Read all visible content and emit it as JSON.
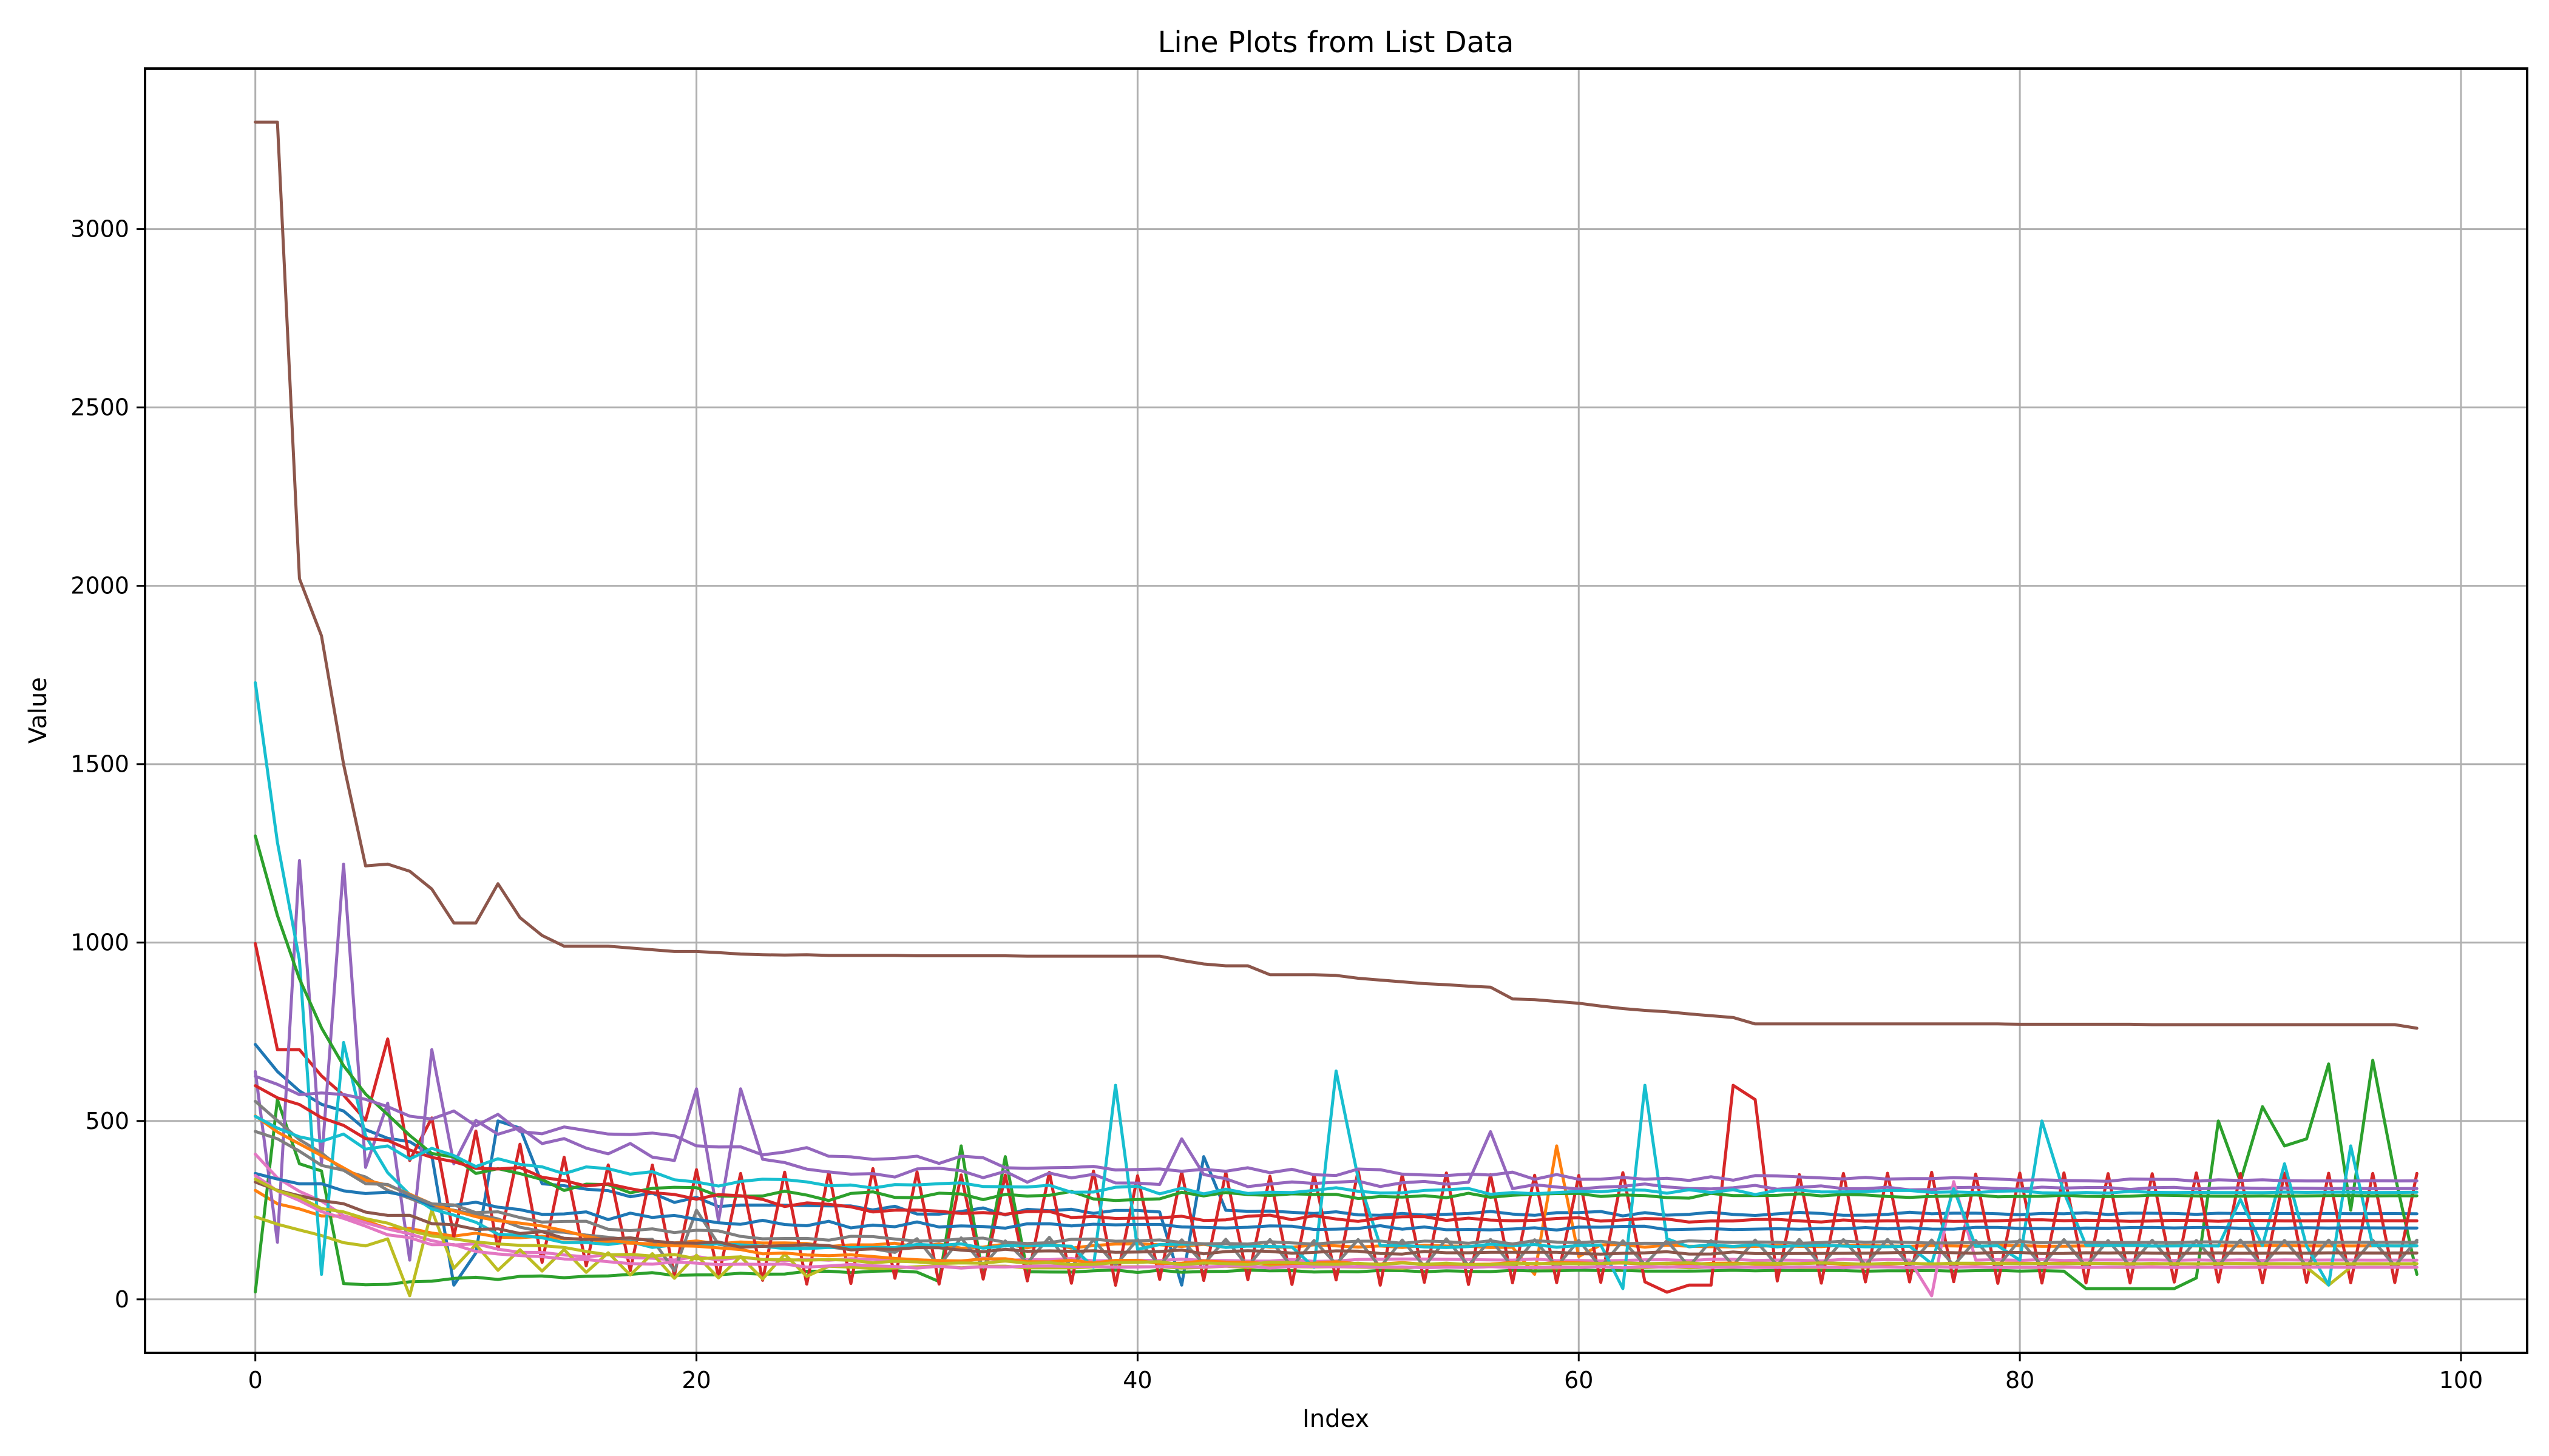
{
  "chart_data": {
    "type": "line",
    "title": "Line Plots from List Data",
    "xlabel": "Index",
    "ylabel": "Value",
    "xlim": [
      -5,
      103
    ],
    "ylim": [
      -150,
      3450
    ],
    "xticks": [
      0,
      20,
      40,
      60,
      80,
      100
    ],
    "yticks": [
      0,
      500,
      1000,
      1500,
      2000,
      2500,
      3000
    ],
    "grid": true,
    "legend": "none",
    "series_shapes": [
      {
        "color": "#1f77b4",
        "start": 700,
        "end": 240,
        "decay": 8,
        "osc": 0,
        "oscstart": 0,
        "oscend": 0,
        "seed": 11,
        "spikes": [
          [
            9,
            40
          ],
          [
            10,
            130
          ],
          [
            11,
            500
          ],
          [
            12,
            480
          ],
          [
            42,
            40
          ],
          [
            43,
            400
          ]
        ]
      },
      {
        "color": "#ff7f0e",
        "start": 300,
        "end": 150,
        "decay": 6,
        "osc": 0,
        "oscstart": 0,
        "oscend": 0,
        "seed": 12,
        "spikes": [
          [
            58,
            70
          ],
          [
            59,
            430
          ],
          [
            60,
            120
          ]
        ]
      },
      {
        "color": "#2ca02c",
        "start": 20,
        "end": 80,
        "decay": 10,
        "osc": 0,
        "oscstart": 0,
        "oscend": 0,
        "seed": 13,
        "spikes": [
          [
            1,
            560
          ],
          [
            2,
            380
          ],
          [
            3,
            360
          ],
          [
            31,
            50
          ],
          [
            32,
            430
          ],
          [
            33,
            60
          ],
          [
            34,
            400
          ],
          [
            83,
            30
          ],
          [
            84,
            30
          ],
          [
            85,
            30
          ],
          [
            86,
            30
          ],
          [
            87,
            30
          ],
          [
            88,
            60
          ],
          [
            89,
            500
          ],
          [
            90,
            330
          ],
          [
            91,
            540
          ],
          [
            92,
            430
          ],
          [
            93,
            450
          ],
          [
            94,
            660
          ],
          [
            95,
            250
          ],
          [
            96,
            670
          ],
          [
            97,
            350
          ],
          [
            98,
            70
          ]
        ]
      },
      {
        "color": "#d62728",
        "start": 1000,
        "end": 200,
        "decay": 5,
        "osc": 170,
        "oscstart": 8,
        "oscend": 99,
        "seed": 14,
        "spikes": [
          [
            1,
            700
          ],
          [
            2,
            700
          ],
          [
            6,
            730
          ],
          [
            64,
            20
          ],
          [
            65,
            40
          ],
          [
            66,
            40
          ],
          [
            67,
            600
          ],
          [
            68,
            560
          ]
        ]
      },
      {
        "color": "#9467bd",
        "start": 650,
        "end": 310,
        "decay": 15,
        "osc": 0,
        "oscstart": 0,
        "oscend": 0,
        "seed": 15,
        "spikes": [
          [
            1,
            160
          ],
          [
            2,
            1230
          ],
          [
            3,
            380
          ],
          [
            4,
            1220
          ],
          [
            5,
            370
          ],
          [
            7,
            110
          ],
          [
            8,
            700
          ],
          [
            9,
            380
          ],
          [
            20,
            590
          ],
          [
            21,
            220
          ],
          [
            22,
            590
          ],
          [
            56,
            470
          ],
          [
            42,
            450
          ],
          [
            43,
            350
          ]
        ]
      },
      {
        "color": "#8c564b",
        "start": 3300,
        "end": 760,
        "decay": 0,
        "osc": 0,
        "oscstart": 0,
        "oscend": 0,
        "seed": 16,
        "explicit": [
          3300,
          3300,
          2020,
          1860,
          1500,
          1215,
          1220,
          1200,
          1150,
          1055,
          1055,
          1165,
          1070,
          1020,
          990,
          990,
          990,
          985,
          980,
          975,
          975,
          972,
          968,
          966,
          965,
          966,
          964,
          964,
          964,
          964,
          963,
          963,
          963,
          963,
          963,
          962,
          962,
          962,
          962,
          962,
          962,
          962,
          950,
          940,
          935,
          935,
          910,
          910,
          910,
          908,
          900,
          895,
          890,
          885,
          882,
          878,
          875,
          842,
          840,
          835,
          830,
          822,
          815,
          810,
          806,
          800,
          795,
          790,
          772,
          772,
          772,
          772,
          772,
          772,
          772,
          772,
          772,
          772,
          772,
          772,
          771,
          771,
          771,
          771,
          771,
          771,
          770,
          770,
          770,
          770,
          770,
          770,
          770,
          770,
          770,
          770,
          770,
          770,
          760
        ],
        "spikes": []
      },
      {
        "color": "#e377c2",
        "start": 400,
        "end": 110,
        "decay": 5,
        "osc": 0,
        "oscstart": 0,
        "oscend": 0,
        "seed": 17,
        "spikes": [
          [
            76,
            10
          ],
          [
            77,
            330
          ],
          [
            78,
            110
          ]
        ]
      },
      {
        "color": "#7f7f7f",
        "start": 550,
        "end": 130,
        "decay": 7,
        "osc": 40,
        "oscstart": 30,
        "oscend": 99,
        "seed": 18,
        "spikes": [
          [
            19,
            80
          ],
          [
            20,
            250
          ]
        ]
      },
      {
        "color": "#bcbd22",
        "start": 230,
        "end": 90,
        "decay": 6,
        "osc": 35,
        "oscstart": 6,
        "oscend": 25,
        "seed": 19,
        "spikes": [
          [
            7,
            10
          ],
          [
            8,
            250
          ],
          [
            94,
            40
          ]
        ]
      },
      {
        "color": "#17becf",
        "start": 1730,
        "end": 150,
        "decay": 3,
        "osc": 0,
        "oscstart": 0,
        "oscend": 0,
        "seed": 20,
        "spikes": [
          [
            3,
            70
          ],
          [
            4,
            720
          ],
          [
            38,
            90
          ],
          [
            39,
            600
          ],
          [
            40,
            140
          ],
          [
            48,
            90
          ],
          [
            49,
            640
          ],
          [
            50,
            340
          ],
          [
            62,
            30
          ],
          [
            63,
            600
          ],
          [
            64,
            170
          ],
          [
            76,
            100
          ],
          [
            77,
            310
          ],
          [
            80,
            110
          ],
          [
            81,
            500
          ],
          [
            82,
            300
          ],
          [
            90,
            280
          ],
          [
            92,
            380
          ],
          [
            94,
            40
          ],
          [
            95,
            430
          ]
        ]
      },
      {
        "color": "#1f77b4",
        "start": 360,
        "end": 200,
        "decay": 10,
        "osc": 0,
        "oscstart": 0,
        "oscend": 0,
        "seed": 21,
        "spikes": []
      },
      {
        "color": "#ff7f0e",
        "start": 520,
        "end": 100,
        "decay": 9,
        "osc": 0,
        "oscstart": 0,
        "oscend": 0,
        "seed": 22,
        "spikes": []
      },
      {
        "color": "#2ca02c",
        "start": 1280,
        "end": 290,
        "decay": 4,
        "osc": 0,
        "oscstart": 0,
        "oscend": 0,
        "seed": 23,
        "spikes": []
      },
      {
        "color": "#d62728",
        "start": 590,
        "end": 220,
        "decay": 12,
        "osc": 0,
        "oscstart": 0,
        "oscend": 0,
        "seed": 24,
        "spikes": []
      },
      {
        "color": "#9467bd",
        "start": 620,
        "end": 330,
        "decay": 20,
        "osc": 0,
        "oscstart": 0,
        "oscend": 0,
        "seed": 25,
        "spikes": []
      },
      {
        "color": "#8c564b",
        "start": 330,
        "end": 130,
        "decay": 10,
        "osc": 0,
        "oscstart": 0,
        "oscend": 0,
        "seed": 26,
        "spikes": []
      },
      {
        "color": "#e377c2",
        "start": 350,
        "end": 90,
        "decay": 6,
        "osc": 0,
        "oscstart": 0,
        "oscend": 0,
        "seed": 27,
        "spikes": []
      },
      {
        "color": "#7f7f7f",
        "start": 480,
        "end": 160,
        "decay": 8,
        "osc": 0,
        "oscstart": 0,
        "oscend": 0,
        "seed": 28,
        "spikes": []
      },
      {
        "color": "#bcbd22",
        "start": 330,
        "end": 100,
        "decay": 8,
        "osc": 0,
        "oscstart": 0,
        "oscend": 0,
        "seed": 29,
        "spikes": []
      },
      {
        "color": "#17becf",
        "start": 500,
        "end": 300,
        "decay": 12,
        "osc": 0,
        "oscstart": 0,
        "oscend": 0,
        "seed": 30,
        "spikes": []
      }
    ]
  }
}
